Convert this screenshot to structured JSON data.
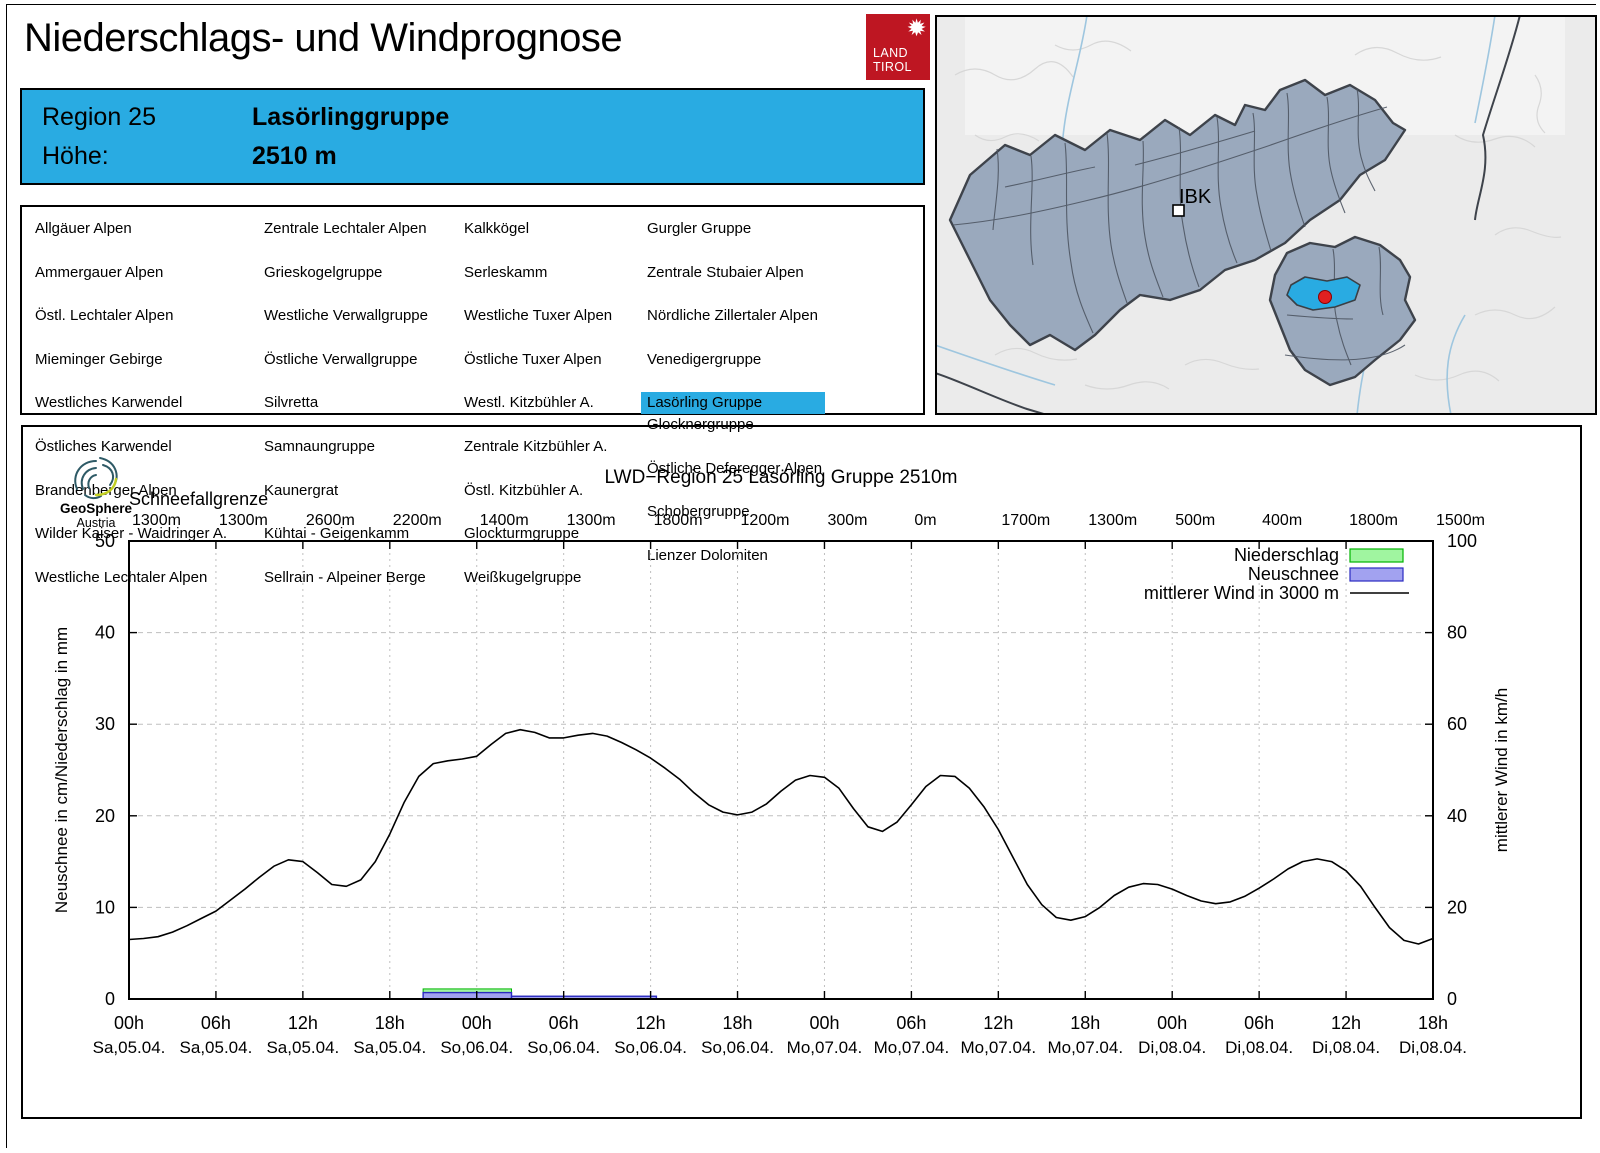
{
  "page": {
    "title": "Niederschlags- und Windprognose"
  },
  "land_tirol_logo": {
    "line1": "LAND",
    "line2": "TIROL",
    "color": "#BE1622"
  },
  "region_box": {
    "bg_color": "#29ABE2",
    "rows": [
      {
        "label": "Region 25",
        "value": "Lasörlinggruppe"
      },
      {
        "label": "Höhe:",
        "value": "2510 m"
      }
    ]
  },
  "region_list": {
    "highlighted": "Lasörling Gruppe",
    "highlight_color": "#29ABE2",
    "columns": [
      [
        "Allgäuer Alpen",
        "Ammergauer Alpen",
        "Östl. Lechtaler Alpen",
        "Mieminger Gebirge",
        "Westliches Karwendel",
        "Östliches Karwendel",
        "Brandenberger Alpen",
        "Wilder Kaiser - Waidringer A.",
        "Westliche Lechtaler Alpen"
      ],
      [
        "Zentrale Lechtaler Alpen",
        "Grieskogelgruppe",
        "Westliche Verwallgruppe",
        "Östliche Verwallgruppe",
        "Silvretta",
        "Samnaungruppe",
        "Kaunergrat",
        "Kühtai - Geigenkamm",
        "Sellrain - Alpeiner Berge"
      ],
      [
        "Kalkkögel",
        "Serleskamm",
        "Westliche Tuxer Alpen",
        "Östliche Tuxer Alpen",
        "Westl. Kitzbühler A.",
        "Zentrale Kitzbühler A.",
        "Östl. Kitzbühler A.",
        "Glockturmgruppe",
        "Weißkugelgruppe"
      ],
      [
        "Gurgler Gruppe",
        "Zentrale Stubaier Alpen",
        "Nördliche Zillertaler Alpen",
        "Venedigergruppe",
        "Lasörling Gruppe",
        "Glocknergruppe",
        "Östliche Deferegger Alpen",
        "Schobergruppe",
        "Lienzer Dolomiten"
      ]
    ]
  },
  "map": {
    "city_label": "IBK",
    "highlight_color": "#29ABE2",
    "marker_color": "#E02020",
    "region_fill": "#9AA9BD"
  },
  "geosphere": {
    "name": "GeoSphere",
    "sub": "Austria"
  },
  "chart_data": {
    "type": "line",
    "title": "LWD−Region 25 Lasörling Gruppe 2510m",
    "snowline_label": "Schneefallgrenze",
    "snowline_values_m": [
      "1300m",
      "1300m",
      "2600m",
      "2200m",
      "1400m",
      "1300m",
      "1800m",
      "1200m",
      "300m",
      "0m",
      "1700m",
      "1300m",
      "500m",
      "400m",
      "1800m",
      "1500m"
    ],
    "ylabel_left": "Neuschnee in cm/Niederschlag in mm",
    "ylabel_right": "mittlerer Wind in km/h",
    "ylim_left": [
      0,
      50
    ],
    "yticks_left": [
      0,
      10,
      20,
      30,
      40,
      50
    ],
    "ylim_right": [
      0,
      100
    ],
    "yticks_right": [
      0,
      20,
      40,
      60,
      80,
      100
    ],
    "x_hours_range": [
      0,
      90
    ],
    "xtick_step_hours": 6,
    "xticks": [
      {
        "hour": "00h",
        "date": "Sa,05.04."
      },
      {
        "hour": "06h",
        "date": "Sa,05.04."
      },
      {
        "hour": "12h",
        "date": "Sa,05.04."
      },
      {
        "hour": "18h",
        "date": "Sa,05.04."
      },
      {
        "hour": "00h",
        "date": "So,06.04."
      },
      {
        "hour": "06h",
        "date": "So,06.04."
      },
      {
        "hour": "12h",
        "date": "So,06.04."
      },
      {
        "hour": "18h",
        "date": "So,06.04."
      },
      {
        "hour": "00h",
        "date": "Mo,07.04."
      },
      {
        "hour": "06h",
        "date": "Mo,07.04."
      },
      {
        "hour": "12h",
        "date": "Mo,07.04."
      },
      {
        "hour": "18h",
        "date": "Mo,07.04."
      },
      {
        "hour": "00h",
        "date": "Di,08.04."
      },
      {
        "hour": "06h",
        "date": "Di,08.04."
      },
      {
        "hour": "12h",
        "date": "Di,08.04."
      },
      {
        "hour": "18h",
        "date": "Di,08.04."
      }
    ],
    "legend": [
      {
        "label": "Niederschlag",
        "type": "box",
        "fill": "#A0F5A0",
        "stroke": "#00B400"
      },
      {
        "label": "Neuschnee",
        "type": "box",
        "fill": "#A2A2F0",
        "stroke": "#2A2AC0"
      },
      {
        "label": "mittlerer Wind in 3000 m",
        "type": "line",
        "stroke": "#000000"
      }
    ],
    "bars": [
      {
        "x0_hour": 20.3,
        "x1_hour": 26.4,
        "niederschlag_mm": 1.1,
        "neuschnee_cm": 0.7
      },
      {
        "x0_hour": 26.4,
        "x1_hour": 36.4,
        "niederschlag_mm": 0.0,
        "neuschnee_cm": 0.3
      }
    ],
    "wind": {
      "start_hour": 0,
      "step_hours": 1,
      "values_kmh": [
        13,
        13.2,
        13.6,
        14.6,
        16,
        17.6,
        19.2,
        21.6,
        24,
        26.6,
        29,
        30.4,
        30,
        27.6,
        25,
        24.6,
        26,
        30,
        36,
        43,
        48.6,
        51.4,
        52,
        52.4,
        53,
        55.6,
        58,
        58.8,
        58.2,
        57,
        57,
        57.6,
        58,
        57.4,
        56,
        54.4,
        52.6,
        50.4,
        48,
        45,
        42.4,
        40.8,
        40.2,
        40.8,
        42.6,
        45.4,
        47.8,
        48.8,
        48.4,
        46,
        41.6,
        37.6,
        36.6,
        38.6,
        42.4,
        46.4,
        48.8,
        48.6,
        46,
        42,
        37,
        31,
        25,
        20.6,
        17.8,
        17.2,
        18,
        20,
        22.6,
        24.4,
        25.2,
        25,
        24,
        22.6,
        21.4,
        20.8,
        21.2,
        22.4,
        24.2,
        26.2,
        28.4,
        30,
        30.6,
        30,
        28,
        24.6,
        20,
        15.6,
        12.8,
        12,
        13.2
      ]
    },
    "grid": {
      "h_dash_at": [
        10,
        20,
        30,
        40
      ],
      "color": "#BFBFBF"
    }
  }
}
